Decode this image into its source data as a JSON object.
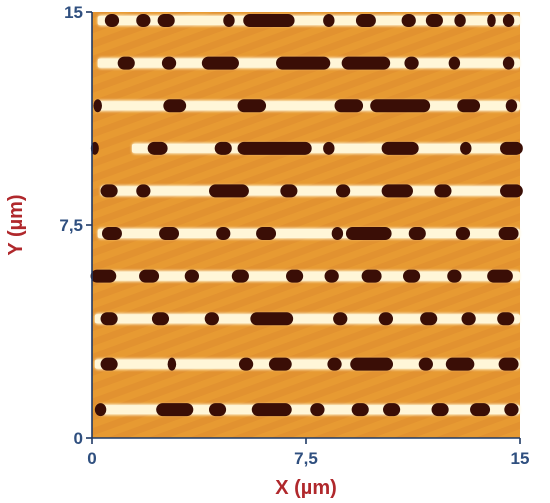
{
  "chart_data": {
    "type": "heatmap",
    "title": "",
    "xlabel": "X (µm)",
    "ylabel": "Y (µm)",
    "xlim": [
      0,
      15
    ],
    "ylim": [
      0,
      15
    ],
    "x_ticks": [
      "0",
      "7,5",
      "15"
    ],
    "y_ticks": [
      "0",
      "7,5",
      "15"
    ],
    "x_tick_values": [
      0,
      7.5,
      15
    ],
    "y_tick_values": [
      0,
      7.5,
      15
    ],
    "grid": false,
    "legend": "none",
    "colormap": [
      "#3a0e05",
      "#c85b10",
      "#e9941f",
      "#f6c76a",
      "#fff4cf"
    ],
    "background_color": "#e79a32",
    "track_color": "#fff6d8",
    "mark_color": "#3a0e06",
    "tracks": [
      {
        "y": 14.7,
        "start": 0.2,
        "end": 15,
        "marks": [
          [
            0.7,
            0.5
          ],
          [
            1.8,
            0.5
          ],
          [
            2.6,
            0.6
          ],
          [
            4.8,
            0.4
          ],
          [
            6.2,
            1.8
          ],
          [
            8.3,
            0.4
          ],
          [
            9.6,
            0.7
          ],
          [
            11.1,
            0.5
          ],
          [
            12.0,
            0.6
          ],
          [
            12.9,
            0.4
          ],
          [
            14.0,
            0.3
          ],
          [
            14.6,
            0.4
          ]
        ]
      },
      {
        "y": 13.2,
        "start": 0.2,
        "end": 15,
        "marks": [
          [
            1.2,
            0.6
          ],
          [
            2.7,
            0.5
          ],
          [
            4.5,
            1.3
          ],
          [
            7.4,
            1.9
          ],
          [
            9.6,
            1.7
          ],
          [
            11.2,
            0.5
          ],
          [
            12.7,
            0.4
          ],
          [
            14.6,
            0.4
          ]
        ]
      },
      {
        "y": 11.7,
        "start": 0.1,
        "end": 15,
        "marks": [
          [
            0.2,
            0.3
          ],
          [
            2.9,
            0.8
          ],
          [
            5.6,
            1.0
          ],
          [
            9.0,
            1.0
          ],
          [
            10.8,
            2.1
          ],
          [
            13.2,
            0.8
          ],
          [
            14.7,
            0.4
          ]
        ]
      },
      {
        "y": 10.2,
        "start": 1.4,
        "end": 15,
        "marks": [
          [
            0.1,
            0.2
          ],
          [
            2.3,
            0.7
          ],
          [
            4.6,
            0.6
          ],
          [
            6.4,
            2.6
          ],
          [
            8.3,
            0.4
          ],
          [
            10.8,
            1.3
          ],
          [
            13.1,
            0.4
          ],
          [
            14.7,
            0.8
          ]
        ]
      },
      {
        "y": 8.7,
        "start": 0.3,
        "end": 15,
        "marks": [
          [
            0.6,
            0.6
          ],
          [
            1.8,
            0.5
          ],
          [
            4.8,
            1.4
          ],
          [
            6.9,
            0.6
          ],
          [
            8.8,
            0.5
          ],
          [
            10.7,
            1.1
          ],
          [
            12.3,
            0.6
          ],
          [
            14.7,
            0.8
          ]
        ]
      },
      {
        "y": 7.2,
        "start": 0.2,
        "end": 15,
        "marks": [
          [
            0.7,
            0.7
          ],
          [
            2.7,
            0.7
          ],
          [
            4.6,
            0.5
          ],
          [
            6.1,
            0.7
          ],
          [
            8.6,
            0.4
          ],
          [
            9.7,
            1.6
          ],
          [
            11.4,
            0.6
          ],
          [
            13.0,
            0.5
          ],
          [
            14.6,
            0.7
          ]
        ]
      },
      {
        "y": 5.7,
        "start": 0.1,
        "end": 15,
        "marks": [
          [
            0.4,
            0.9
          ],
          [
            2.0,
            0.7
          ],
          [
            3.5,
            0.5
          ],
          [
            5.2,
            0.6
          ],
          [
            7.1,
            0.6
          ],
          [
            8.4,
            0.5
          ],
          [
            9.8,
            0.7
          ],
          [
            11.2,
            0.6
          ],
          [
            12.7,
            0.5
          ],
          [
            14.3,
            0.9
          ]
        ]
      },
      {
        "y": 4.2,
        "start": 0.1,
        "end": 15,
        "marks": [
          [
            0.6,
            0.6
          ],
          [
            2.4,
            0.6
          ],
          [
            4.2,
            0.5
          ],
          [
            6.3,
            1.5
          ],
          [
            8.7,
            0.5
          ],
          [
            10.3,
            0.5
          ],
          [
            11.8,
            0.6
          ],
          [
            13.2,
            0.5
          ],
          [
            14.5,
            0.6
          ]
        ]
      },
      {
        "y": 2.6,
        "start": 0.1,
        "end": 15,
        "marks": [
          [
            0.6,
            0.6
          ],
          [
            2.8,
            0.3
          ],
          [
            5.4,
            0.5
          ],
          [
            6.6,
            0.8
          ],
          [
            8.5,
            0.5
          ],
          [
            9.8,
            1.5
          ],
          [
            11.7,
            0.5
          ],
          [
            12.9,
            1.0
          ],
          [
            14.6,
            0.7
          ]
        ]
      },
      {
        "y": 1.0,
        "start": 0.2,
        "end": 15,
        "marks": [
          [
            0.3,
            0.4
          ],
          [
            2.9,
            1.3
          ],
          [
            4.4,
            0.6
          ],
          [
            6.3,
            1.4
          ],
          [
            7.9,
            0.5
          ],
          [
            9.4,
            0.6
          ],
          [
            10.5,
            0.6
          ],
          [
            12.2,
            0.6
          ],
          [
            13.6,
            0.7
          ],
          [
            14.7,
            0.5
          ]
        ]
      }
    ]
  }
}
